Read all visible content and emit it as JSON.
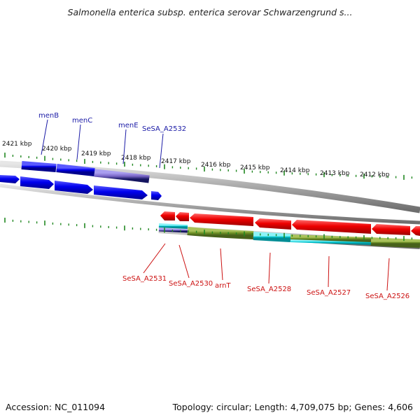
{
  "title": "Salmonella enterica subsp. enterica serovar Schwarzengrund s...",
  "footer": {
    "accession": "Accession: NC_011094",
    "summary": "Topology: circular; Length: 4,709,075 bp; Genes: 4,606"
  },
  "scale_ticks": [
    "2421 kbp",
    "2420 kbp",
    "2419 kbp",
    "2418 kbp",
    "2417 kbp",
    "2416 kbp",
    "2415 kbp",
    "2414 kbp",
    "2413 kbp",
    "2412 kbp"
  ],
  "top_genes": [
    "menB",
    "menC",
    "menE",
    "SeSA_A2532"
  ],
  "bottom_genes": [
    "SeSA_A2531",
    "SeSA_A2530",
    "arnT",
    "SeSA_A2528",
    "SeSA_A2527",
    "SeSA_A2526"
  ],
  "colors": {
    "forward_gene": "#0000ee",
    "reverse_gene": "#ee0000",
    "top_label": "#1a1aa6",
    "bottom_label": "#cc1111",
    "tick": "#228822",
    "backbone": "#8a8a8a",
    "cds_olive": "#6b8e23",
    "cds_cyan": "#00c8d2",
    "cds_purple": "#7b68c8"
  }
}
